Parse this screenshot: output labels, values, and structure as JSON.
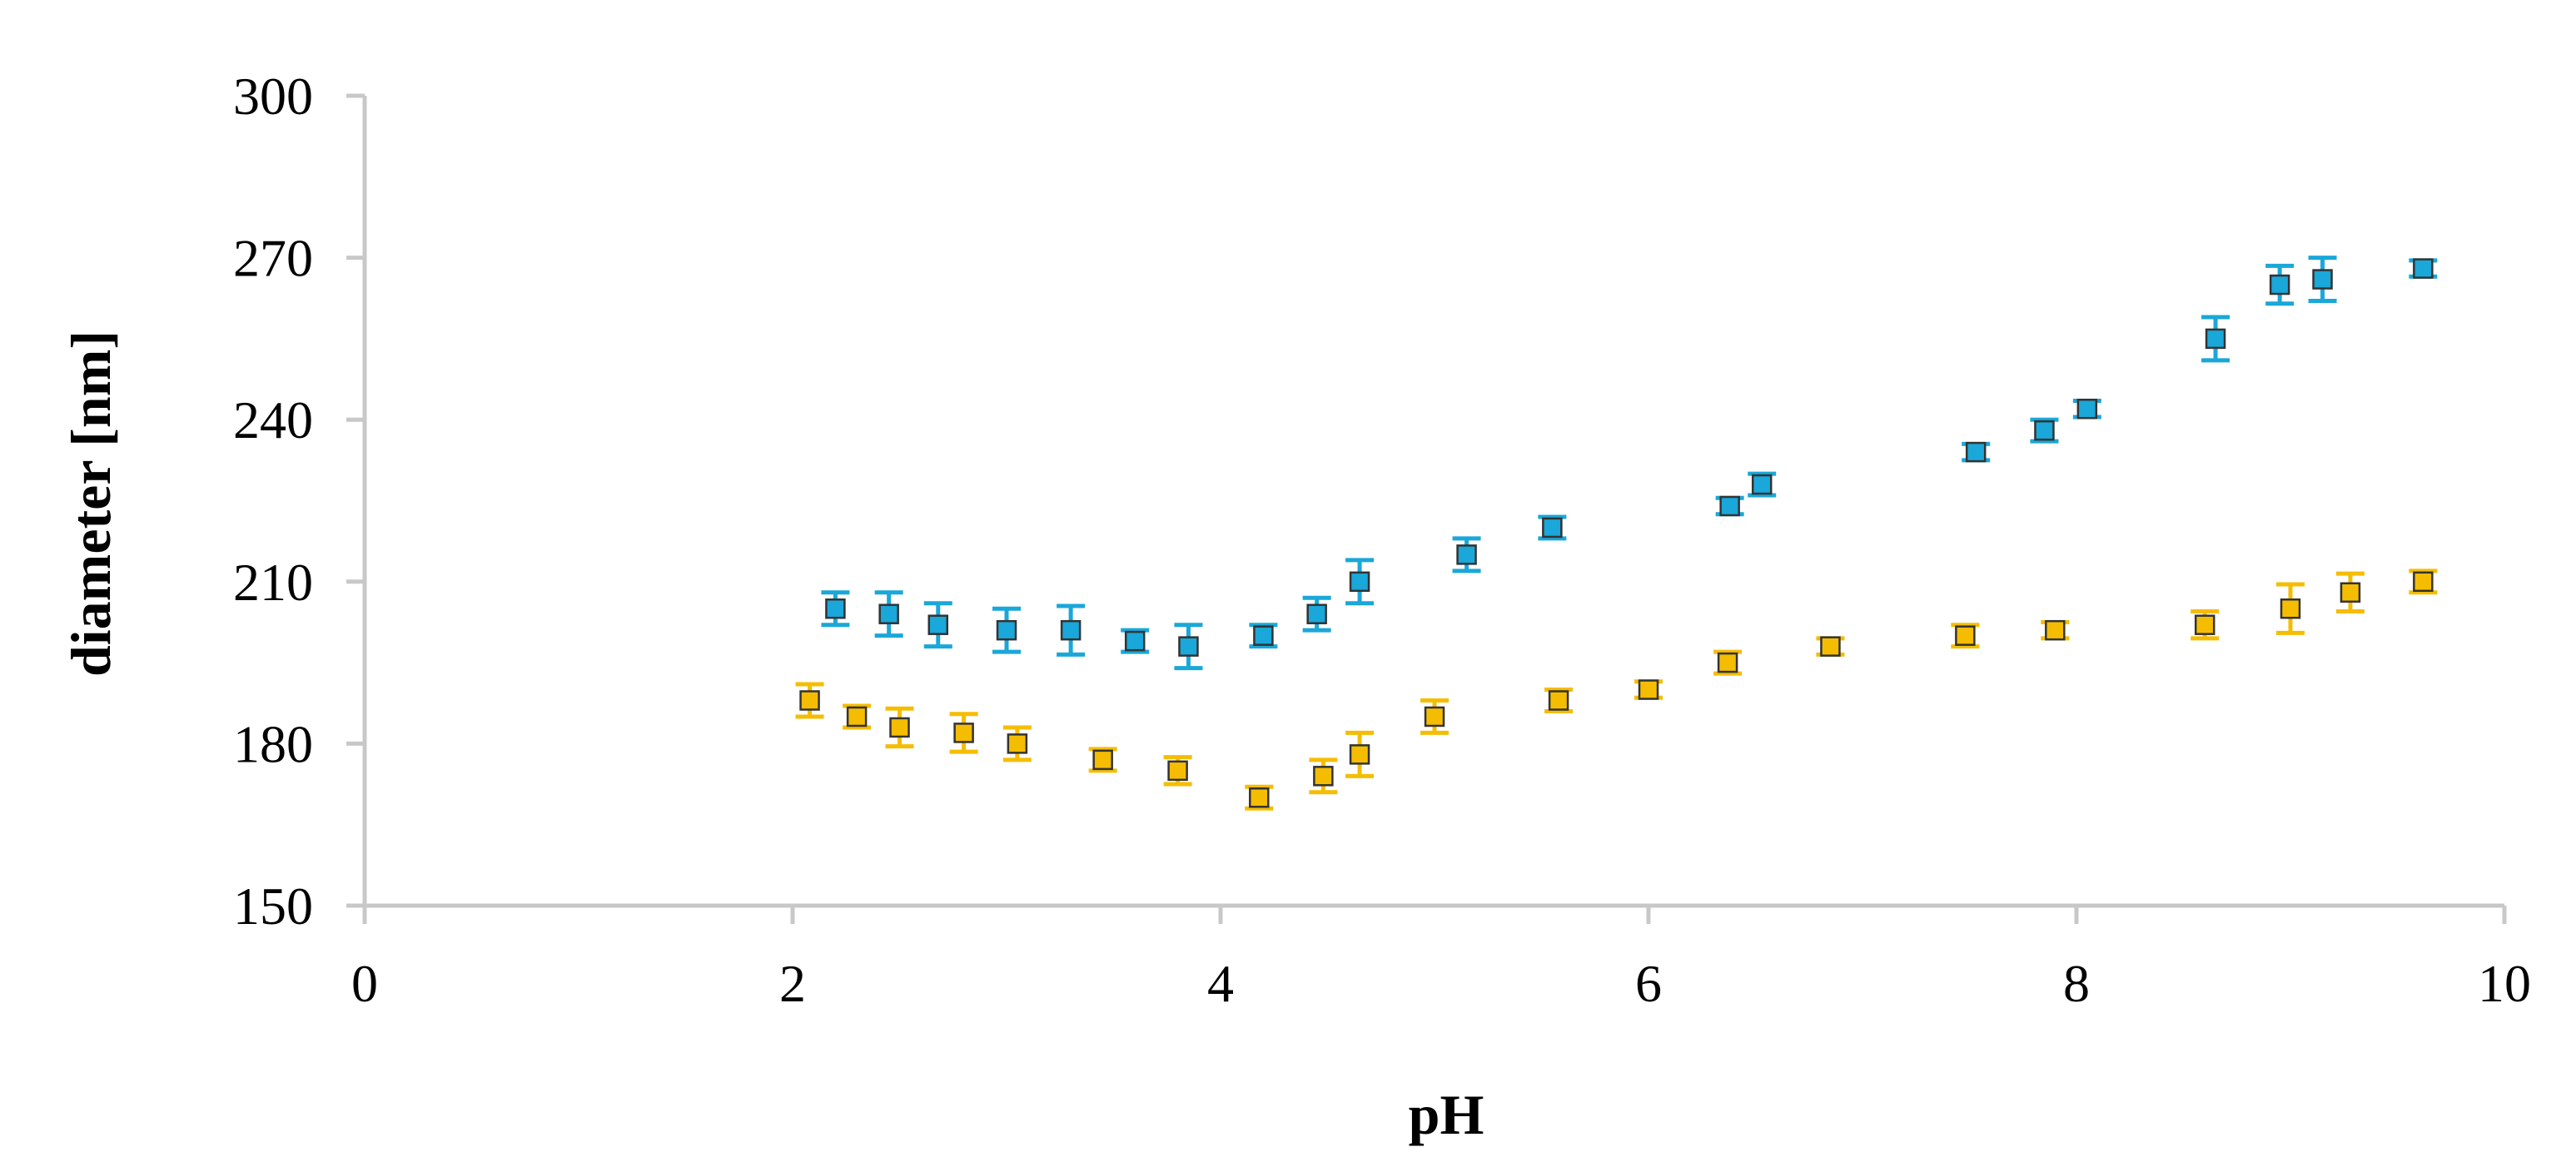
{
  "chart_data": {
    "type": "scatter",
    "title": "",
    "xlabel": "pH",
    "ylabel": "diameter  [nm]",
    "xlim": [
      0,
      10
    ],
    "ylim": [
      150,
      300
    ],
    "x_ticks": [
      "0",
      "2",
      "4",
      "6",
      "8",
      "10"
    ],
    "y_ticks": [
      "150",
      "180",
      "210",
      "240",
      "270",
      "300"
    ],
    "grid": false,
    "legend": "none",
    "series": [
      {
        "color": "#1aa7d9",
        "marker": "square",
        "points": [
          {
            "x": 2.2,
            "y": 205,
            "err": 3
          },
          {
            "x": 2.45,
            "y": 204,
            "err": 4
          },
          {
            "x": 2.68,
            "y": 202,
            "err": 4
          },
          {
            "x": 3.0,
            "y": 201,
            "err": 4
          },
          {
            "x": 3.3,
            "y": 201,
            "err": 4.5
          },
          {
            "x": 3.6,
            "y": 199,
            "err": 2
          },
          {
            "x": 3.85,
            "y": 198,
            "err": 4
          },
          {
            "x": 4.2,
            "y": 200,
            "err": 2
          },
          {
            "x": 4.45,
            "y": 204,
            "err": 3
          },
          {
            "x": 4.65,
            "y": 210,
            "err": 4
          },
          {
            "x": 5.15,
            "y": 215,
            "err": 3
          },
          {
            "x": 5.55,
            "y": 220,
            "err": 2
          },
          {
            "x": 6.38,
            "y": 224,
            "err": 1.5
          },
          {
            "x": 6.53,
            "y": 228,
            "err": 2
          },
          {
            "x": 7.53,
            "y": 234,
            "err": 1.5
          },
          {
            "x": 7.85,
            "y": 238,
            "err": 2
          },
          {
            "x": 8.05,
            "y": 242,
            "err": 1.5
          },
          {
            "x": 8.65,
            "y": 255,
            "err": 4
          },
          {
            "x": 8.95,
            "y": 265,
            "err": 3.5
          },
          {
            "x": 9.15,
            "y": 266,
            "err": 4
          },
          {
            "x": 9.62,
            "y": 268,
            "err": 1.5
          }
        ]
      },
      {
        "color": "#f5bd02",
        "marker": "square",
        "points": [
          {
            "x": 2.08,
            "y": 188,
            "err": 3
          },
          {
            "x": 2.3,
            "y": 185,
            "err": 2
          },
          {
            "x": 2.5,
            "y": 183,
            "err": 3.5
          },
          {
            "x": 2.8,
            "y": 182,
            "err": 3.5
          },
          {
            "x": 3.05,
            "y": 180,
            "err": 3
          },
          {
            "x": 3.45,
            "y": 177,
            "err": 2
          },
          {
            "x": 3.8,
            "y": 175,
            "err": 2.5
          },
          {
            "x": 4.18,
            "y": 170,
            "err": 2
          },
          {
            "x": 4.48,
            "y": 174,
            "err": 3
          },
          {
            "x": 4.65,
            "y": 178,
            "err": 4
          },
          {
            "x": 5.0,
            "y": 185,
            "err": 3
          },
          {
            "x": 5.58,
            "y": 188,
            "err": 2
          },
          {
            "x": 6.0,
            "y": 190,
            "err": 1.5
          },
          {
            "x": 6.37,
            "y": 195,
            "err": 2
          },
          {
            "x": 6.85,
            "y": 198,
            "err": 1.5
          },
          {
            "x": 7.48,
            "y": 200,
            "err": 2
          },
          {
            "x": 7.9,
            "y": 201,
            "err": 1.5
          },
          {
            "x": 8.6,
            "y": 202,
            "err": 2.5
          },
          {
            "x": 9.0,
            "y": 205,
            "err": 4.5
          },
          {
            "x": 9.28,
            "y": 208,
            "err": 3.5
          },
          {
            "x": 9.62,
            "y": 210,
            "err": 2
          }
        ]
      }
    ]
  }
}
